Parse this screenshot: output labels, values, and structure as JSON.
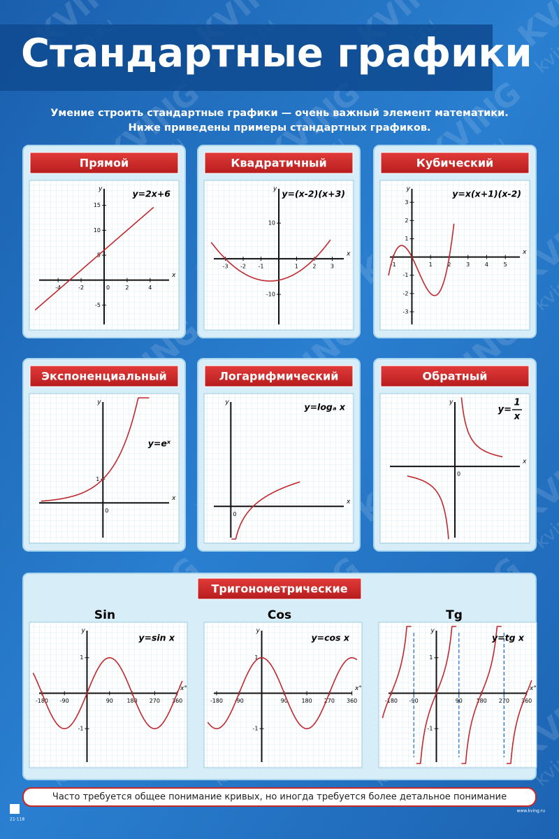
{
  "header": {
    "title": "Стандартные графики",
    "intro": [
      "Умение строить стандартные графики — очень важный элемент математики.",
      "Ниже приведены примеры стандартных графиков."
    ]
  },
  "panels": [
    {
      "title": "Прямой",
      "formula": "y=2x+6",
      "x_label": "x",
      "y_label": "y",
      "xticks": [
        -4,
        -2,
        0,
        2,
        4
      ],
      "yticks": [
        15,
        10,
        5,
        -5
      ]
    },
    {
      "title": "Квадратичный",
      "formula": "y=(x-2)(x+3)",
      "x_label": "x",
      "y_label": "y",
      "xticks": [
        -3,
        -2,
        -1,
        1,
        2,
        3
      ],
      "yticks": [
        10,
        -10
      ]
    },
    {
      "title": "Кубический",
      "formula": "y=x(x+1)(x-2)",
      "x_label": "x",
      "y_label": "y",
      "xticks": [
        -1,
        1,
        2,
        3,
        4,
        5
      ],
      "yticks": [
        3,
        2,
        1,
        -1,
        -2,
        -3
      ]
    },
    {
      "title": "Экспоненциальный",
      "formula": "y=eˣ",
      "x_label": "x",
      "y_label": "y",
      "xticks": [
        0
      ],
      "yticks": [
        1
      ]
    },
    {
      "title": "Логарифмический",
      "formula": "y=logₐ x",
      "x_label": "x",
      "y_label": "y",
      "xticks": [
        0
      ],
      "yticks": []
    },
    {
      "title": "Обратный",
      "formula": "y=",
      "numerator": "1",
      "denominator": "x",
      "x_label": "x",
      "y_label": "y",
      "xticks": [
        0
      ],
      "yticks": []
    }
  ],
  "trig": {
    "title": "Тригонометрические",
    "graphs": [
      {
        "name": "Sin",
        "formula": "y=sin x",
        "x_label": "x°",
        "y_label": "y",
        "xticks": [
          -180,
          -90,
          90,
          180,
          270,
          360
        ],
        "yticks": [
          1,
          -1
        ]
      },
      {
        "name": "Cos",
        "formula": "y=cos x",
        "x_label": "x°",
        "y_label": "y",
        "xticks": [
          -180,
          -90,
          90,
          180,
          270,
          360
        ],
        "yticks": [
          1,
          -1
        ]
      },
      {
        "name": "Tg",
        "formula": "y=tg x",
        "x_label": "x°",
        "y_label": "y",
        "xticks": [
          -180,
          -90,
          90,
          180,
          270,
          360
        ],
        "yticks": [
          1,
          -1
        ]
      }
    ]
  },
  "footer": "Часто требуется общее понимание кривых, но иногда требуется более детальное понимание",
  "watermark": {
    "brand": "KVING",
    "site": "kving.ru"
  },
  "code": "21-118",
  "url": "www.kving.ru"
}
